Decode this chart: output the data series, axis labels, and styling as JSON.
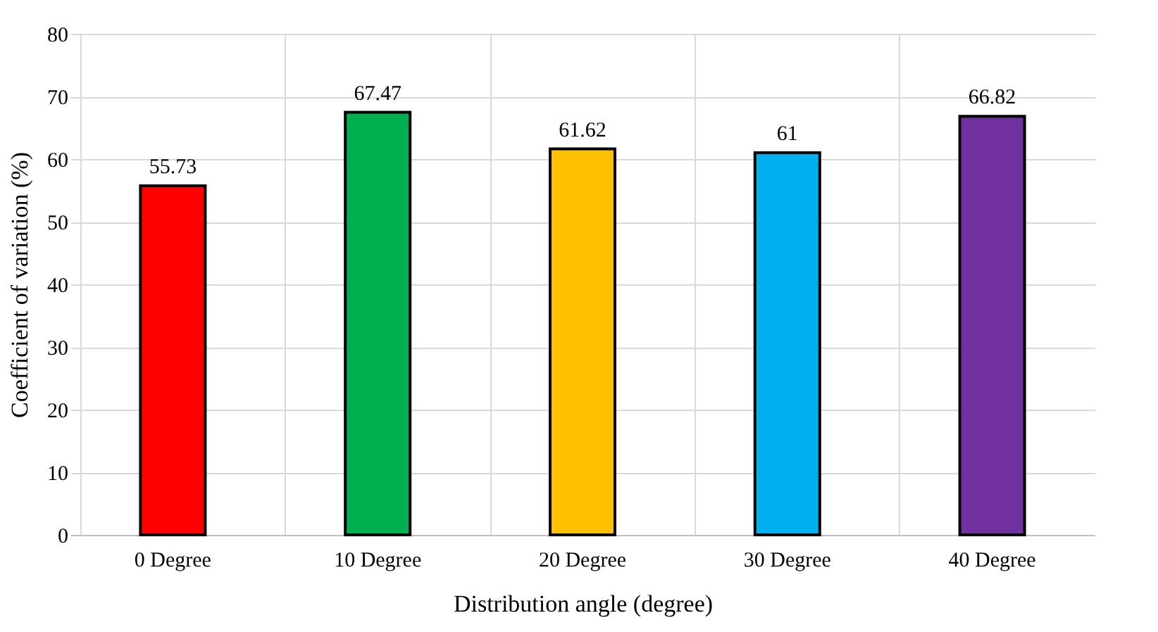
{
  "chart_data": {
    "type": "bar",
    "xlabel": "Distribution angle (degree)",
    "ylabel": "Coefficient of variation (%)",
    "categories": [
      "0 Degree",
      "10 Degree",
      "20 Degree",
      "30 Degree",
      "40 Degree"
    ],
    "values": [
      55.73,
      67.47,
      61.62,
      61,
      66.82
    ],
    "colors": [
      "#ff0000",
      "#00b050",
      "#ffc000",
      "#00b0f0",
      "#7030a0"
    ],
    "ylim": [
      0,
      80
    ],
    "yticks": [
      0,
      10,
      20,
      30,
      40,
      50,
      60,
      70,
      80
    ],
    "grid": true,
    "data_labels": true
  }
}
